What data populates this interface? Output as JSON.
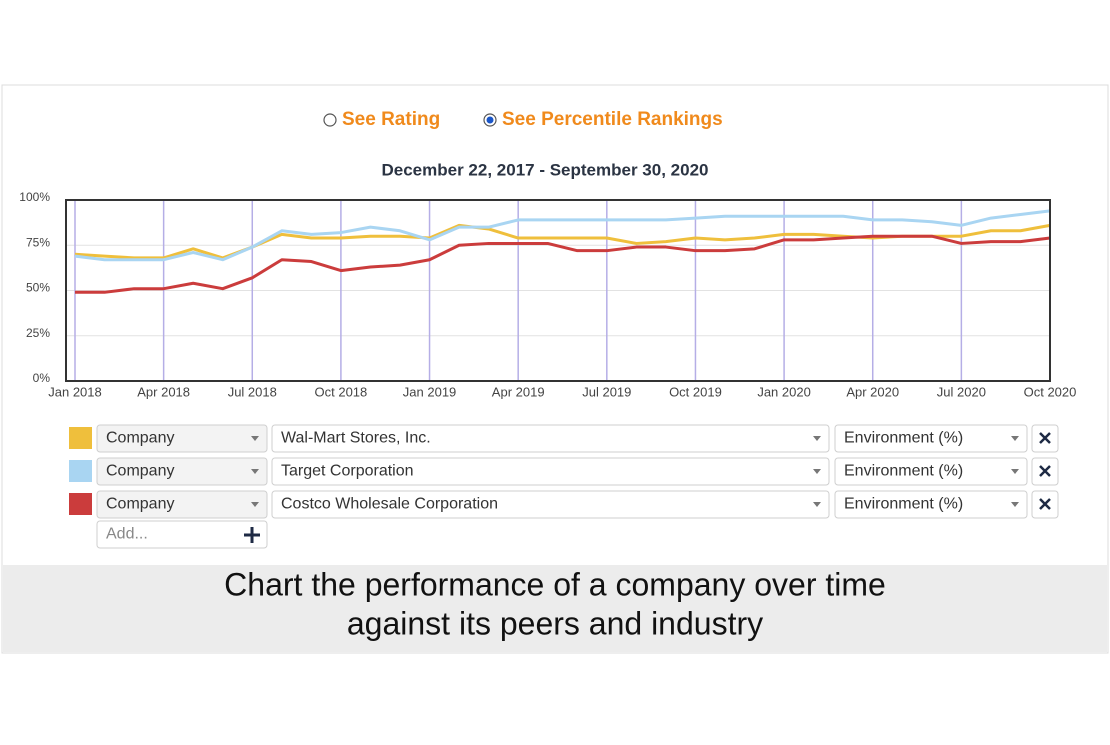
{
  "controls": {
    "options": [
      "See Rating",
      "See Percentile Rankings"
    ],
    "selected": 1
  },
  "chart_data": {
    "type": "line",
    "title": "December 22, 2017 - September 30, 2020",
    "x": [
      "Jan 2018",
      "Feb 2018",
      "Mar 2018",
      "Apr 2018",
      "May 2018",
      "Jun 2018",
      "Jul 2018",
      "Aug 2018",
      "Sep 2018",
      "Oct 2018",
      "Nov 2018",
      "Dec 2018",
      "Jan 2019",
      "Feb 2019",
      "Mar 2019",
      "Apr 2019",
      "May 2019",
      "Jun 2019",
      "Jul 2019",
      "Aug 2019",
      "Sep 2019",
      "Oct 2019",
      "Nov 2019",
      "Dec 2019",
      "Jan 2020",
      "Feb 2020",
      "Mar 2020",
      "Apr 2020",
      "May 2020",
      "Jun 2020",
      "Jul 2020",
      "Aug 2020",
      "Sep 2020",
      "Oct 2020"
    ],
    "xlim": [
      "Jan 2018",
      "Oct 2020"
    ],
    "xticks": [
      "Jan 2018",
      "Apr 2018",
      "Jul 2018",
      "Oct 2018",
      "Jan 2019",
      "Apr 2019",
      "Jul 2019",
      "Oct 2019",
      "Jan 2020",
      "Apr 2020",
      "Jul 2020",
      "Oct 2020"
    ],
    "ylim": [
      0,
      100
    ],
    "yticks": [
      {
        "value": 0,
        "label": "0%"
      },
      {
        "value": 25,
        "label": "25%"
      },
      {
        "value": 50,
        "label": "50%"
      },
      {
        "value": 75,
        "label": "75%"
      },
      {
        "value": 100,
        "label": "100%"
      }
    ],
    "grid": true,
    "series": [
      {
        "name": "Wal-Mart Stores, Inc.",
        "color": "#efbf3c",
        "values": [
          70,
          69,
          68,
          68,
          73,
          68,
          74,
          81,
          79,
          79,
          80,
          80,
          79,
          86,
          84,
          79,
          79,
          79,
          79,
          76,
          77,
          79,
          78,
          79,
          81,
          81,
          80,
          79,
          80,
          80,
          80,
          83,
          83,
          86
        ]
      },
      {
        "name": "Target Corporation",
        "color": "#a9d5f2",
        "values": [
          69,
          67,
          67,
          67,
          71,
          67,
          74,
          83,
          81,
          82,
          85,
          83,
          78,
          85,
          85,
          89,
          89,
          89,
          89,
          89,
          89,
          90,
          91,
          91,
          91,
          91,
          91,
          89,
          89,
          88,
          86,
          90,
          92,
          94
        ]
      },
      {
        "name": "Costco Wholesale Corporation",
        "color": "#cb3c3c",
        "values": [
          49,
          49,
          51,
          51,
          54,
          51,
          57,
          67,
          66,
          61,
          63,
          64,
          67,
          75,
          76,
          76,
          76,
          72,
          72,
          74,
          74,
          72,
          72,
          73,
          78,
          78,
          79,
          80,
          80,
          80,
          76,
          77,
          77,
          79
        ]
      }
    ]
  },
  "selectors": [
    {
      "kind": "Company",
      "metric": "Environment (%)"
    },
    {
      "kind": "Company",
      "metric": "Environment (%)"
    },
    {
      "kind": "Company",
      "metric": "Environment (%)"
    }
  ],
  "add_placeholder": "Add...",
  "caption": [
    "Chart the performance of a company over time",
    "against its peers and industry"
  ]
}
